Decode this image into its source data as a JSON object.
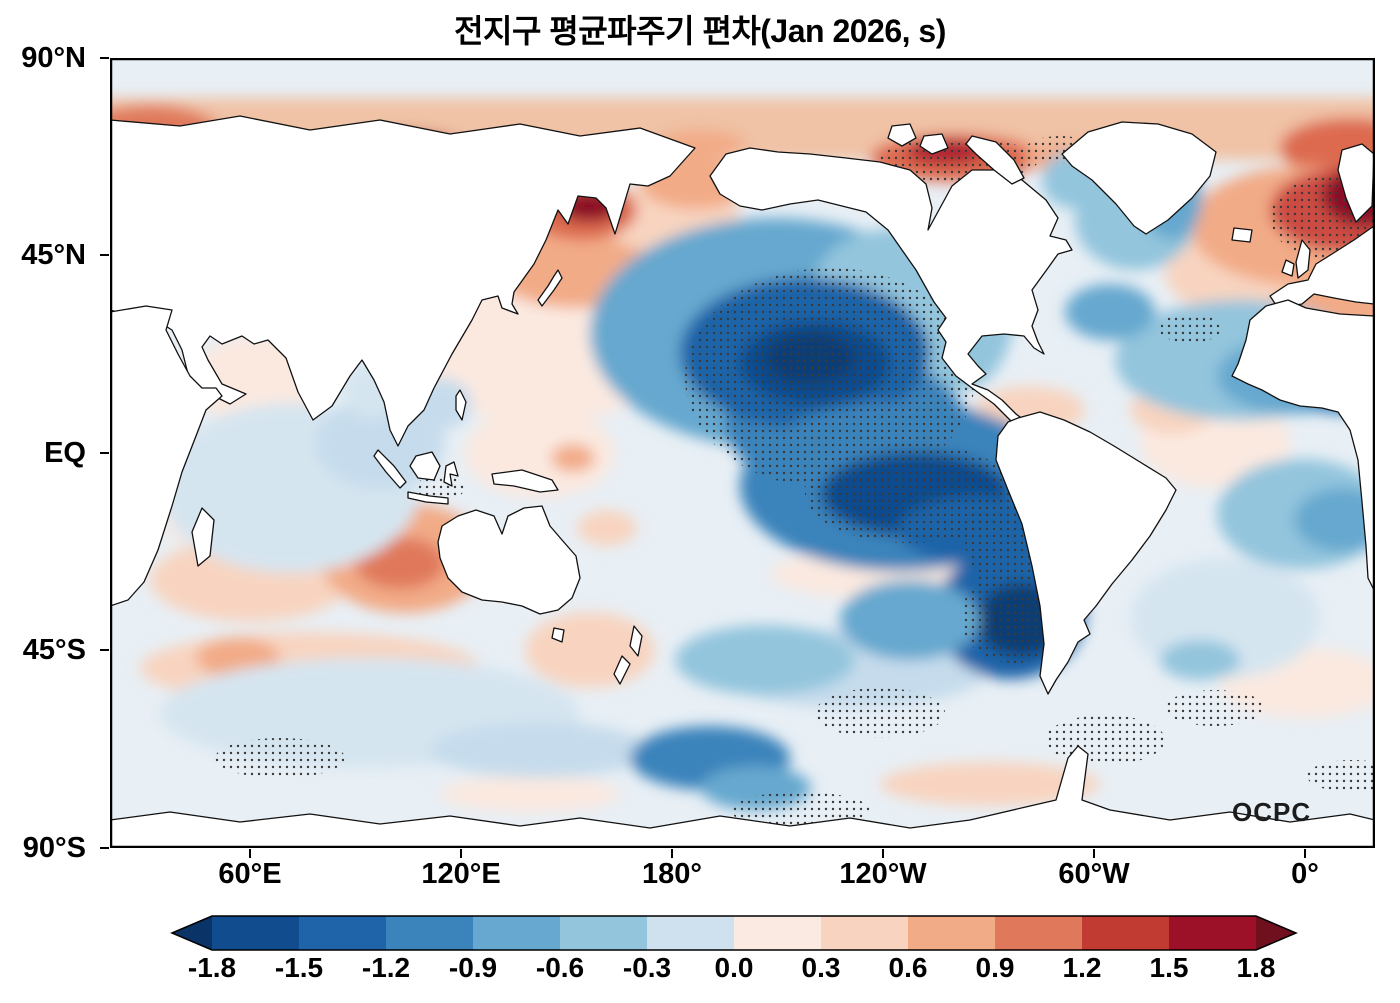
{
  "title": "전지구 평균파주기 편차(Jan 2026, s)",
  "watermark": "OCPC",
  "axes": {
    "lat_labels": [
      "90°N",
      "45°N",
      "EQ",
      "45°S",
      "90°S"
    ],
    "lon_labels": [
      "60°E",
      "120°E",
      "180°",
      "120°W",
      "60°W",
      "0°"
    ]
  },
  "colorbar": {
    "tick_labels": [
      "-1.8",
      "-1.5",
      "-1.2",
      "-0.9",
      "-0.6",
      "-0.3",
      "0.0",
      "0.3",
      "0.6",
      "0.9",
      "1.2",
      "1.5",
      "1.8"
    ],
    "segment_colors": [
      "#114c8e",
      "#1f63a8",
      "#3b83bb",
      "#66a8cf",
      "#93c5dd",
      "#cfe0ee",
      "#fbeae1",
      "#f8d4c0",
      "#f2ab87",
      "#e0795c",
      "#c23b33",
      "#9c1127"
    ],
    "arrow_left_color": "#0a3367",
    "arrow_right_color": "#70101f"
  },
  "chart_data": {
    "type": "heatmap",
    "title": "전지구 평균파주기 편차(Jan 2026, s)",
    "variable": "global mean wave period anomaly",
    "unit": "s",
    "period": "Jan 2026",
    "source_label": "OCPC",
    "projection": "global lat-lon map, longitude from ~20°E wrapping to 20°E",
    "lat_ticks": [
      "90°N",
      "45°N",
      "EQ",
      "45°S",
      "90°S"
    ],
    "lon_ticks": [
      "60°E",
      "120°E",
      "180°",
      "120°W",
      "60°W",
      "0°"
    ],
    "colorbar_range": [
      -1.8,
      1.8
    ],
    "colorbar_interval": 0.3,
    "colorbar_ticks": [
      -1.8,
      -1.5,
      -1.2,
      -0.9,
      -0.6,
      -0.3,
      0.0,
      0.3,
      0.6,
      0.9,
      1.2,
      1.5,
      1.8
    ],
    "legend_position": "bottom",
    "grid": false,
    "stippling_meaning": "dotted regions indicate statistically significant anomalies",
    "anomaly_regions": [
      {
        "region": "North-central Pacific (180-130W, 15-40N)",
        "anomaly_s": -1.8,
        "stippled": true
      },
      {
        "region": "Eastern equatorial Pacific (160-100W, 10N-15S)",
        "anomaly_s": -1.5,
        "stippled": true
      },
      {
        "region": "Southeast Pacific off Chile (100-80W, 30-50S)",
        "anomaly_s": -1.6,
        "stippled": true
      },
      {
        "region": "North Atlantic 30-45N",
        "anomaly_s": -0.8,
        "stippled": false
      },
      {
        "region": "Equatorial Atlantic",
        "anomaly_s": -0.7,
        "stippled": false
      },
      {
        "region": "Labrador Sea / south of Greenland",
        "anomaly_s": -0.6,
        "stippled": false
      },
      {
        "region": "Sea of Okhotsk / Kamchatka (NW Pacific)",
        "anomaly_s": 1.8,
        "stippled": false
      },
      {
        "region": "Northwest Pacific toward Japan",
        "anomaly_s": 0.6,
        "stippled": false
      },
      {
        "region": "Norwegian Sea / Northeast Atlantic near UK",
        "anomaly_s": 1.7,
        "stippled": true
      },
      {
        "region": "Arctic - Canadian Archipelago",
        "anomaly_s": 1.2,
        "stippled": true
      },
      {
        "region": "Arctic - Kara/Laptev sector",
        "anomaly_s": 1.5,
        "stippled": false
      },
      {
        "region": "Southeast Indian Ocean west of Australia",
        "anomaly_s": 0.9,
        "stippled": false
      },
      {
        "region": "South Indian Ocean 40-50S",
        "anomaly_s": 0.4,
        "stippled": true
      },
      {
        "region": "Indian Ocean basin interior",
        "anomaly_s": -0.2,
        "stippled": false
      },
      {
        "region": "South Atlantic 30-50S",
        "anomaly_s": -0.3,
        "stippled": true
      },
      {
        "region": "Southern Ocean near 180, 55-65S",
        "anomaly_s": -0.9,
        "stippled": true
      }
    ]
  }
}
